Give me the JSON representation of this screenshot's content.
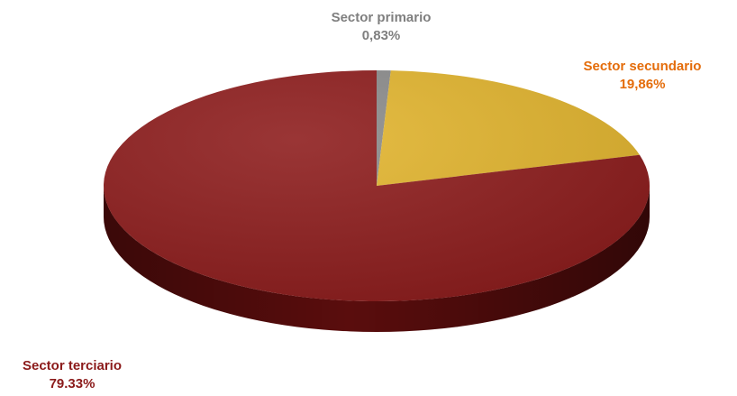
{
  "chart_data": {
    "type": "pie",
    "slices": [
      {
        "label": "Sector primario",
        "value_label": "0,83%",
        "value": 0.83,
        "color": "#8a8a8a",
        "side_color": "#555555",
        "label_color": "#7f7f7f"
      },
      {
        "label": "Sector secundario",
        "value_label": "19,86%",
        "value": 19.86,
        "color": "#e2b42c",
        "side_color": "#9a7512",
        "label_color": "#e46c0a"
      },
      {
        "label": "Sector terciario",
        "value_label": "79.33%",
        "value": 79.33,
        "color": "#8c1a1a",
        "side_color": "#5a0d0d",
        "label_color": "#8b1a1a"
      }
    ],
    "style": "3d",
    "start": "top",
    "direction": "clockwise",
    "legend": "none"
  }
}
